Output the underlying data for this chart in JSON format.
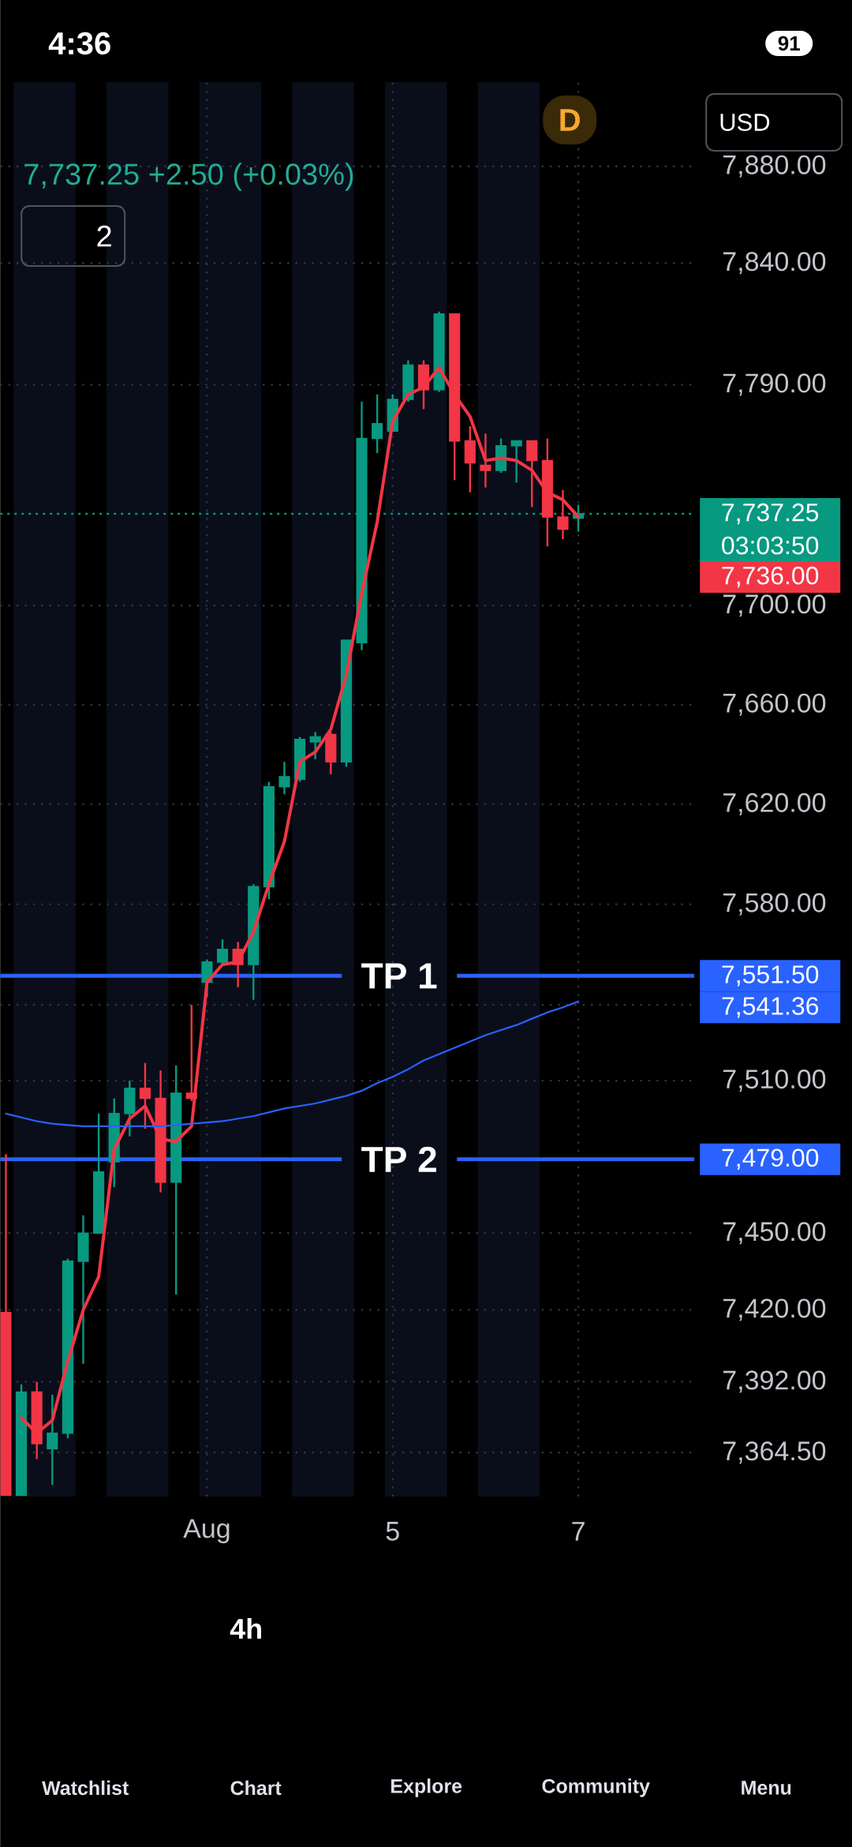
{
  "chart_data": {
    "type": "candlestick",
    "subtitle": "7,737.25 +2.50 (+0.03%)",
    "categories": [
      null,
      null,
      null,
      null,
      null,
      null,
      null,
      null,
      null,
      null,
      null,
      null,
      null,
      "Aug",
      null,
      null,
      null,
      null,
      null,
      null,
      null,
      null,
      null,
      null,
      null,
      "5",
      null,
      null,
      null,
      null,
      null,
      null,
      null,
      null,
      null,
      null,
      null,
      "7"
    ],
    "ohlc": [
      [
        7419,
        7481,
        7348,
        7348
      ],
      [
        7348,
        7391,
        7348,
        7388
      ],
      [
        7388,
        7392,
        7362,
        7368
      ],
      [
        7366,
        7387,
        7352,
        7372
      ],
      [
        7372,
        7440,
        7370,
        7439
      ],
      [
        7439,
        7457,
        7399,
        7450
      ],
      [
        7450,
        7497,
        7450,
        7474
      ],
      [
        7478,
        7503,
        7468,
        7497
      ],
      [
        7497,
        7510,
        7488,
        7507
      ],
      [
        7507,
        7517,
        7491,
        7503
      ],
      [
        7503,
        7514,
        7466,
        7470
      ],
      [
        7470,
        7516,
        7426,
        7505
      ],
      [
        7505,
        7540,
        7502,
        7503
      ],
      [
        7549,
        7558,
        7543,
        7557
      ],
      [
        7557,
        7566,
        7556,
        7562
      ],
      [
        7562,
        7565,
        7547,
        7556
      ],
      [
        7556,
        7588,
        7542,
        7587
      ],
      [
        7587,
        7629,
        7582,
        7627
      ],
      [
        7627,
        7637,
        7624,
        7631
      ],
      [
        7630,
        7647,
        7629,
        7646
      ],
      [
        7645,
        7649,
        7638,
        7647
      ],
      [
        7648,
        7649,
        7632,
        7637
      ],
      [
        7637,
        7686,
        7635,
        7686
      ],
      [
        7685,
        7783,
        7682,
        7768
      ],
      [
        7768,
        7786,
        7762,
        7774
      ],
      [
        7771,
        7786,
        7771,
        7784
      ],
      [
        7784,
        7800,
        7783,
        7798
      ],
      [
        7798,
        7800,
        7780,
        7788
      ],
      [
        7788,
        7820,
        7787,
        7819
      ],
      [
        7819,
        7819,
        7751,
        7767
      ],
      [
        7767,
        7773,
        7746,
        7758
      ],
      [
        7757,
        7770,
        7748,
        7755
      ],
      [
        7755,
        7768,
        7754,
        7765
      ],
      [
        7765,
        7767,
        7750,
        7767
      ],
      [
        7767,
        7767,
        7740,
        7759
      ],
      [
        7759,
        7768,
        7724,
        7736
      ],
      [
        7736,
        7747,
        7727,
        7731
      ],
      [
        7735.5,
        7741,
        7730,
        7737.25
      ]
    ],
    "colors": [
      "#f23645",
      "#089981",
      "#f23645",
      "#089981",
      "#089981",
      "#089981",
      "#089981",
      "#089981",
      "#089981",
      "#f23645",
      "#f23645",
      "#089981",
      "#f23645",
      "#089981",
      "#089981",
      "#f23645",
      "#089981",
      "#089981",
      "#089981",
      "#089981",
      "#089981",
      "#f23645",
      "#089981",
      "#089981",
      "#089981",
      "#089981",
      "#089981",
      "#f23645",
      "#089981",
      "#f23645",
      "#f23645",
      "#f23645",
      "#089981",
      "#089981",
      "#f23645",
      "#f23645",
      "#f23645",
      "#089981"
    ],
    "series": [
      {
        "type": "line",
        "color": "#f23645",
        "values": [
          null,
          7378,
          7372,
          7377,
          7400,
          7420,
          7433,
          7483,
          7495,
          7500,
          7487,
          7486,
          7492,
          7549,
          7556,
          7557,
          7569,
          7588,
          7605,
          7637,
          7641,
          7650,
          7672,
          7705,
          7734,
          7775,
          7786,
          7789,
          7797,
          7786,
          7777,
          7759,
          7760,
          7759,
          7755,
          7746,
          7743,
          7736
        ]
      },
      {
        "type": "line",
        "color": "#2962ff",
        "values": [
          7497,
          7495.5,
          7494,
          7493,
          7492.5,
          7492,
          7492,
          7492,
          7492,
          7492,
          7492,
          7492.5,
          7493,
          7493.5,
          7494,
          7495,
          7496,
          7497.5,
          7499,
          7500,
          7501,
          7502.5,
          7504,
          7506,
          7509,
          7511.5,
          7514.5,
          7518,
          7520.5,
          7523,
          7525.5,
          7528,
          7530,
          7532,
          7534.5,
          7537,
          7539,
          7541.36
        ]
      }
    ],
    "ylim": [
      7347.5,
      7915
    ],
    "yticks": [
      {
        "value": 7364.5,
        "label": "7,364.50"
      },
      {
        "value": 7392,
        "label": "7,392.00"
      },
      {
        "value": 7420,
        "label": "7,420.00"
      },
      {
        "value": 7450,
        "label": "7,450.00"
      },
      {
        "value": 7510,
        "label": "7,510.00"
      },
      {
        "value": 7540,
        "label": null
      },
      {
        "value": 7580,
        "label": "7,580.00"
      },
      {
        "value": 7620,
        "label": "7,620.00"
      },
      {
        "value": 7660,
        "label": "7,660.00"
      },
      {
        "value": 7700,
        "label": "7,700.00"
      },
      {
        "value": 7790,
        "label": "7,790.00"
      },
      {
        "value": 7840,
        "label": "7,840.00"
      },
      {
        "value": 7880,
        "label": "7,880.00"
      }
    ],
    "log": "y",
    "grid": true,
    "ref_lines": [
      {
        "axis": "y",
        "value": 7737.25,
        "color": "#089981",
        "line_style": "dotted"
      },
      {
        "axis": "y",
        "value": 7551.5,
        "label": "TP 1",
        "color": "#2962ff"
      },
      {
        "axis": "y",
        "value": 7479,
        "label": "TP 2",
        "color": "#2962ff"
      }
    ],
    "annotations": [
      "4:36",
      "91",
      "USD",
      "D",
      "2",
      "7,737.25",
      "03:03:50",
      "7,736.00",
      "7,551.50",
      "7,541.36",
      "7,479.00",
      "4h",
      "Watchlist",
      "Chart",
      "Explore",
      "Community",
      "Menu"
    ]
  }
}
